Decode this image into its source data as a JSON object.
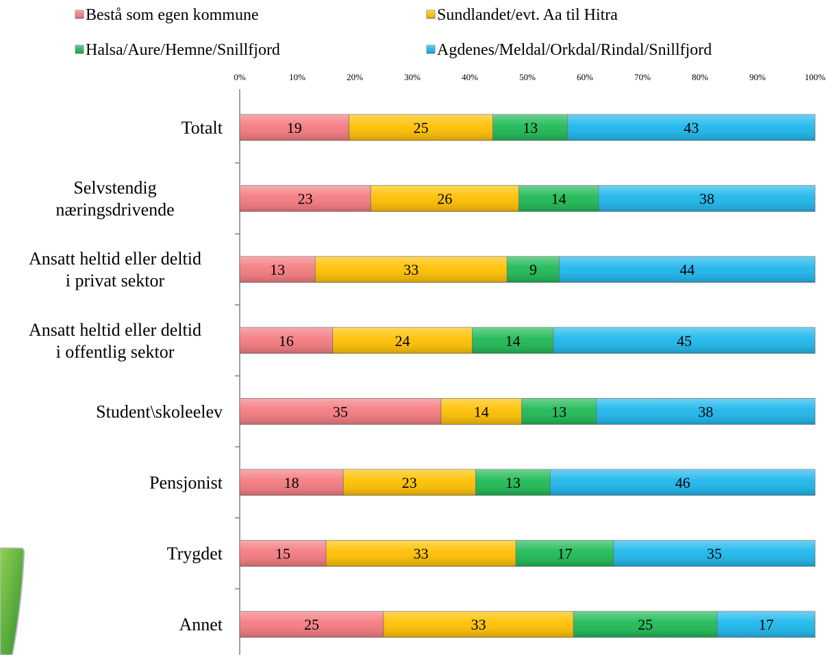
{
  "chart_data": {
    "type": "bar",
    "orientation": "horizontal",
    "stacked": true,
    "percent_stacked": true,
    "categories": [
      "Totalt",
      "Selvstendig næringsdrivende",
      "Ansatt heltid eller deltid i privat sektor",
      "Ansatt heltid eller deltid i offentlig sektor",
      "Student\\skoleelev",
      "Pensjonist",
      "Trygdet",
      "Annet"
    ],
    "category_lines": [
      [
        "Totalt"
      ],
      [
        "Selvstendig",
        "næringsdrivende"
      ],
      [
        "Ansatt heltid eller deltid",
        "i privat sektor"
      ],
      [
        "Ansatt heltid eller deltid",
        "i offentlig sektor"
      ],
      [
        "Student\\skoleelev"
      ],
      [
        "Pensjonist"
      ],
      [
        "Trygdet"
      ],
      [
        "Annet"
      ]
    ],
    "series": [
      {
        "name": "Bestå som egen kommune",
        "color": "#F47A80",
        "values": [
          19,
          23,
          13,
          16,
          35,
          18,
          15,
          25
        ]
      },
      {
        "name": "Sundlandet/evt. Aa til Hitra",
        "color": "#FFC000",
        "values": [
          25,
          26,
          33,
          24,
          14,
          23,
          33,
          33
        ]
      },
      {
        "name": "Halsa/Aure/Hemne/Snillfjord",
        "color": "#1DB954",
        "values": [
          13,
          14,
          9,
          14,
          13,
          13,
          17,
          25
        ]
      },
      {
        "name": "Agdenes/Meldal/Orkdal/Rindal/Snillfjord",
        "color": "#1CB7EC",
        "values": [
          43,
          38,
          44,
          45,
          38,
          46,
          35,
          17
        ]
      }
    ],
    "x_ticks": [
      "0%",
      "10%",
      "20%",
      "30%",
      "40%",
      "50%",
      "60%",
      "70%",
      "80%",
      "90%",
      "100%"
    ],
    "xlim": [
      0,
      100
    ],
    "legend_position": "top",
    "grid": false,
    "title": "",
    "xlabel": "",
    "ylabel": ""
  }
}
